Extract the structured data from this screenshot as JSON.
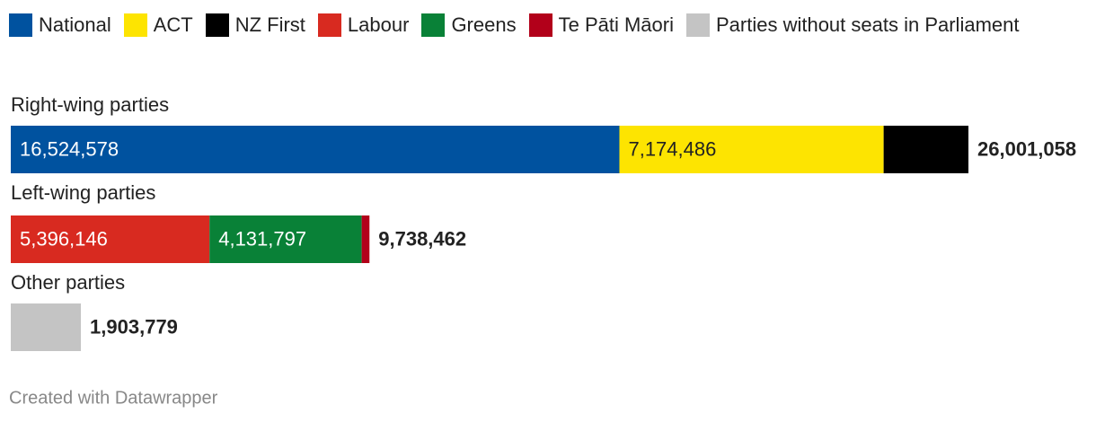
{
  "chart_data": {
    "type": "stacked-bar",
    "categories": [
      "Right-wing parties",
      "Left-wing parties",
      "Other parties"
    ],
    "series": [
      {
        "name": "National",
        "color": "#00529f",
        "values": [
          16524578,
          null,
          null
        ],
        "value_labels": [
          "16,524,578",
          null,
          null
        ]
      },
      {
        "name": "ACT",
        "color": "#fde401",
        "values": [
          7174486,
          null,
          null
        ],
        "value_labels": [
          "7,174,486",
          null,
          null
        ]
      },
      {
        "name": "NZ First",
        "color": "#000000",
        "values": [
          2301994,
          null,
          null
        ]
      },
      {
        "name": "Labour",
        "color": "#d82a20",
        "values": [
          null,
          5396146,
          null
        ],
        "value_labels": [
          null,
          "5,396,146",
          null
        ]
      },
      {
        "name": "Greens",
        "color": "#098137",
        "values": [
          null,
          4131797,
          null
        ],
        "value_labels": [
          null,
          "4,131,797",
          null
        ]
      },
      {
        "name": "Te Pāti Māori",
        "color": "#b2001a",
        "values": [
          null,
          210519,
          null
        ]
      },
      {
        "name": "Parties without seats in Parliament",
        "color": "#c4c4c4",
        "values": [
          null,
          null,
          1903779
        ]
      }
    ],
    "totals": [
      26001058,
      9738462,
      1903779
    ],
    "total_labels": [
      "26,001,058",
      "9,738,462",
      "1,903,779"
    ],
    "footer": "Created with Datawrapper"
  }
}
